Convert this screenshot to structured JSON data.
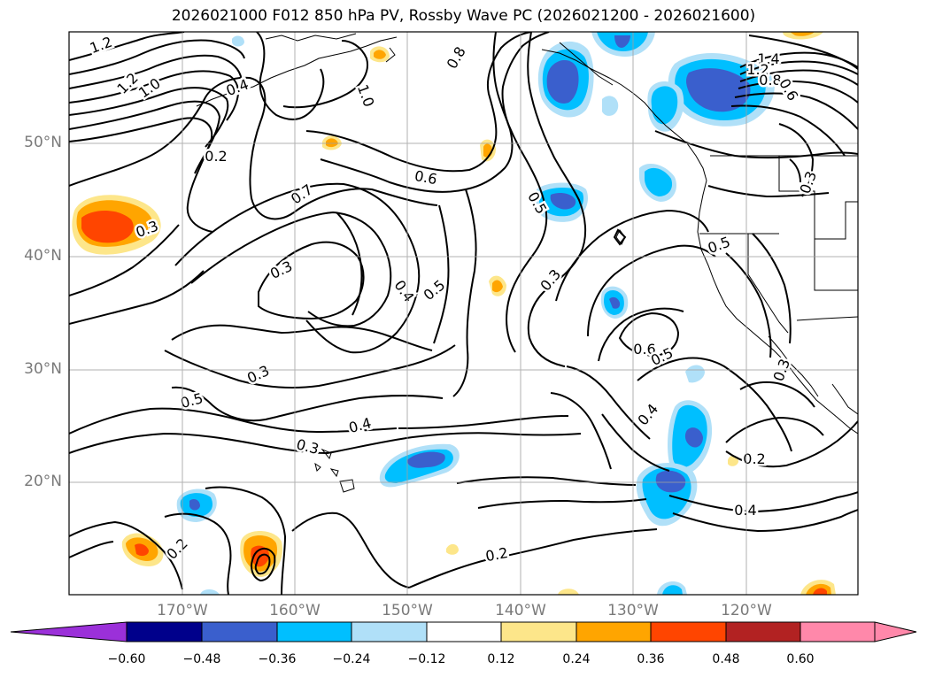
{
  "title": "2026021000 F012 850 hPa PV, Rossby Wave PC (2026021200 - 2026021600)",
  "lat_labels": [
    "50°N",
    "40°N",
    "30°N",
    "20°N"
  ],
  "lon_labels": [
    "170°W",
    "160°W",
    "150°W",
    "140°W",
    "130°W",
    "120°W"
  ],
  "contour_labels": [
    "1.2",
    "1.2",
    "1.0",
    "0.4",
    "0.8",
    "1.0",
    "1.4",
    "1.2",
    "0.8",
    "0.6",
    "0.2",
    "0.6",
    "0.7",
    "0.5",
    "0.3",
    "0.3",
    "0.4",
    "0.5",
    "0.3",
    "0.5",
    "0.6",
    "0.5",
    "0.3",
    "0.3",
    "0.5",
    "0.4",
    "0.4",
    "0.3",
    "0.2",
    "0.4",
    "0.2",
    "0.2",
    "0.3"
  ],
  "colorbar": {
    "ticks": [
      "−0.60",
      "−0.48",
      "−0.36",
      "−0.24",
      "−0.12",
      "0.12",
      "0.24",
      "0.36",
      "0.48",
      "0.60"
    ],
    "colors": [
      "#9b30d9",
      "#00008b",
      "#3a5fcd",
      "#00bfff",
      "#b0e0f8",
      "#ffffff",
      "#fde68a",
      "#ffa500",
      "#ff4500",
      "#b22222",
      "#ff88aa",
      "#ff88aa"
    ]
  },
  "fill_colors": {
    "dark_blue": "#3a5fcd",
    "cyan": "#00bfff",
    "light_blue": "#b0e0f8",
    "light_yellow": "#fde68a",
    "orange": "#ffa500",
    "red_orange": "#ff4500"
  }
}
